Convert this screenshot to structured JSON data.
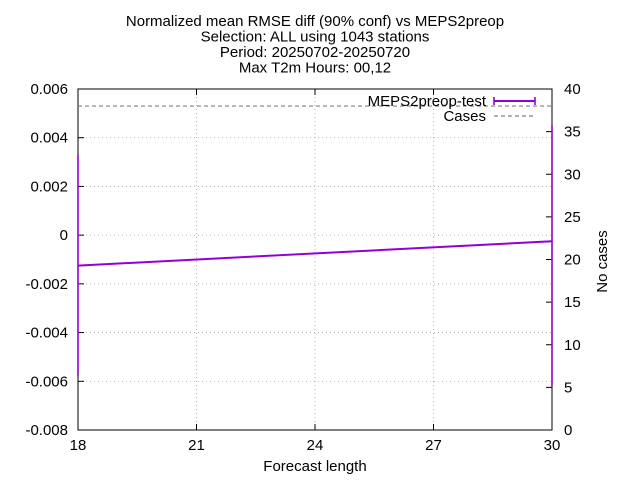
{
  "chart_data": {
    "type": "line",
    "title_lines": [
      "Normalized mean RMSE diff (90% conf) vs MEPS2preop",
      "Selection: ALL using  1043 stations",
      "Period: 20250702-20250720",
      "Max T2m   Hours: 00,12"
    ],
    "xlabel": "Forecast length",
    "ylabel": "",
    "y2label": "No cases",
    "xlim": [
      18,
      30
    ],
    "ylim": [
      -0.008,
      0.006
    ],
    "y2lim": [
      0,
      40
    ],
    "xticks": [
      18,
      21,
      24,
      27,
      30
    ],
    "yticks": [
      -0.008,
      -0.006,
      -0.004,
      -0.002,
      0,
      0.002,
      0.004,
      0.006
    ],
    "yticklabels": [
      "-0.008",
      "-0.006",
      "-0.004",
      "-0.002",
      "0",
      "0.002",
      "0.004",
      "0.006"
    ],
    "y2ticks": [
      0,
      5,
      10,
      15,
      20,
      25,
      30,
      35,
      40
    ],
    "grid": true,
    "legend_position": "top-right",
    "series": [
      {
        "name": "MEPS2preop-test",
        "axis": "y",
        "color": "#9400d3",
        "style": "line-errorbars",
        "x": [
          18,
          30
        ],
        "y": [
          -0.00125,
          -0.00025
        ],
        "err_low": [
          -0.0058,
          -0.0062
        ],
        "err_high": [
          0.0033,
          0.0045
        ]
      },
      {
        "name": "Cases",
        "axis": "y2",
        "color": "#808080",
        "style": "dashed",
        "x": [
          18,
          30
        ],
        "y": [
          38,
          38
        ]
      }
    ]
  }
}
